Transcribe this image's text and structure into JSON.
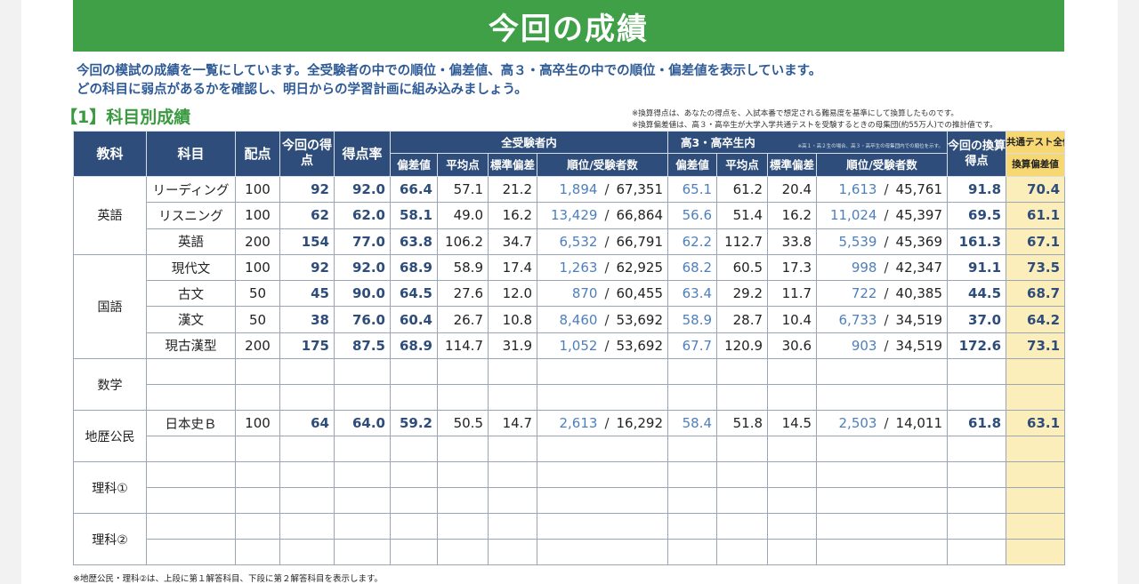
{
  "banner_title": "今回の成績",
  "intro_line1": "今回の模試の成績を一覧にしています。全受験者の中での順位・偏差値、高３・高卒生の中での順位・偏差値を表示しています。",
  "intro_line2": "どの科目に弱点があるかを確認し、明日からの学習計画に組み込みましょう。",
  "section_title": "【1】科目別成績",
  "note1": "※換算得点は、あなたの得点を、入試本番で想定される難易度を基準にして換算したものです。",
  "note2": "※換算偏差値は、高３・高卒生が大学入学共通テストを受験するときの母集団(約55万人)での推計値です。",
  "headers": {
    "kyoka": "教科",
    "kamoku": "科目",
    "haiten": "配点",
    "konkai_tokuten": "今回の得点",
    "tokutenritsu": "得点率",
    "all_group": "全受験者内",
    "hs_group": "高3・高卒生内",
    "hs_group_note": "※高１・高２生の場合、高３・高卒生の母集団内での順位を示す。",
    "hensachi": "偏差値",
    "heikin": "平均点",
    "hyojun": "標準偏差",
    "juni": "順位/受験者数",
    "kansan_tokuten": "今回の換算得点",
    "kyotsu_top": "共通テスト全体",
    "kyotsu_bottom": "換算偏差値"
  },
  "groups": {
    "eigo": "英語",
    "kokugo": "国語",
    "sugaku": "数学",
    "chireki": "地歴公民",
    "rika1": "理科①",
    "rika2": "理科②"
  },
  "rows": [
    {
      "subject": "リーディング",
      "haiten": "100",
      "score": "92",
      "rate": "92.0",
      "a_dev": "66.4",
      "a_avg": "57.1",
      "a_sd": "21.2",
      "a_rank": "1,894",
      "a_total": "67,351",
      "h_dev": "65.1",
      "h_avg": "61.2",
      "h_sd": "20.4",
      "h_rank": "1,613",
      "h_total": "45,761",
      "conv": "91.8",
      "conv_dev": "70.4"
    },
    {
      "subject": "リスニング",
      "haiten": "100",
      "score": "62",
      "rate": "62.0",
      "a_dev": "58.1",
      "a_avg": "49.0",
      "a_sd": "16.2",
      "a_rank": "13,429",
      "a_total": "66,864",
      "h_dev": "56.6",
      "h_avg": "51.4",
      "h_sd": "16.2",
      "h_rank": "11,024",
      "h_total": "45,397",
      "conv": "69.5",
      "conv_dev": "61.1"
    },
    {
      "subject": "英語",
      "haiten": "200",
      "score": "154",
      "rate": "77.0",
      "a_dev": "63.8",
      "a_avg": "106.2",
      "a_sd": "34.7",
      "a_rank": "6,532",
      "a_total": "66,791",
      "h_dev": "62.2",
      "h_avg": "112.7",
      "h_sd": "33.8",
      "h_rank": "5,539",
      "h_total": "45,369",
      "conv": "161.3",
      "conv_dev": "67.1"
    },
    {
      "subject": "現代文",
      "haiten": "100",
      "score": "92",
      "rate": "92.0",
      "a_dev": "68.9",
      "a_avg": "58.9",
      "a_sd": "17.4",
      "a_rank": "1,263",
      "a_total": "62,925",
      "h_dev": "68.2",
      "h_avg": "60.5",
      "h_sd": "17.3",
      "h_rank": "998",
      "h_total": "42,347",
      "conv": "91.1",
      "conv_dev": "73.5"
    },
    {
      "subject": "古文",
      "haiten": "50",
      "score": "45",
      "rate": "90.0",
      "a_dev": "64.5",
      "a_avg": "27.6",
      "a_sd": "12.0",
      "a_rank": "870",
      "a_total": "60,455",
      "h_dev": "63.4",
      "h_avg": "29.2",
      "h_sd": "11.7",
      "h_rank": "722",
      "h_total": "40,385",
      "conv": "44.5",
      "conv_dev": "68.7"
    },
    {
      "subject": "漢文",
      "haiten": "50",
      "score": "38",
      "rate": "76.0",
      "a_dev": "60.4",
      "a_avg": "26.7",
      "a_sd": "10.8",
      "a_rank": "8,460",
      "a_total": "53,692",
      "h_dev": "58.9",
      "h_avg": "28.7",
      "h_sd": "10.4",
      "h_rank": "6,733",
      "h_total": "34,519",
      "conv": "37.0",
      "conv_dev": "64.2"
    },
    {
      "subject": "現古漢型",
      "haiten": "200",
      "score": "175",
      "rate": "87.5",
      "a_dev": "68.9",
      "a_avg": "114.7",
      "a_sd": "31.9",
      "a_rank": "1,052",
      "a_total": "53,692",
      "h_dev": "67.7",
      "h_avg": "120.9",
      "h_sd": "30.6",
      "h_rank": "903",
      "h_total": "34,519",
      "conv": "172.6",
      "conv_dev": "73.1"
    },
    {
      "subject": "日本史Ｂ",
      "haiten": "100",
      "score": "64",
      "rate": "64.0",
      "a_dev": "59.2",
      "a_avg": "50.5",
      "a_sd": "14.7",
      "a_rank": "2,613",
      "a_total": "16,292",
      "h_dev": "58.4",
      "h_avg": "51.8",
      "h_sd": "14.5",
      "h_rank": "2,503",
      "h_total": "14,011",
      "conv": "61.8",
      "conv_dev": "63.1"
    }
  ],
  "separator": "/",
  "footnote": "※地歴公民・理科②は、上段に第１解答科目、下段に第２解答科目を表示します。",
  "colors": {
    "banner": "#3fa048",
    "header": "#2e4d7a",
    "highlight": "#fbeebb",
    "accent_text": "#4e7fbb"
  }
}
